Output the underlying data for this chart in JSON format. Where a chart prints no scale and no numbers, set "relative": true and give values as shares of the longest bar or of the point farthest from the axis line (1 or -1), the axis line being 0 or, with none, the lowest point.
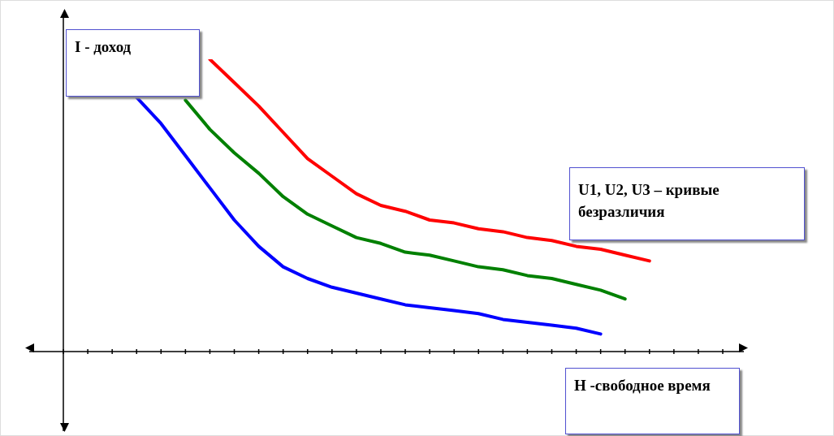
{
  "chart_data": {
    "type": "line",
    "relative": true,
    "legend": false,
    "marker": "none",
    "line_style": "solid",
    "xlabel": "H -свободное время",
    "ylabel": "I - доход",
    "annotations": [
      "U1, U2, U3 – кривые безразличия"
    ],
    "categories": [
      null,
      null,
      null,
      null,
      null,
      null,
      null,
      null,
      null,
      null,
      null,
      null,
      null,
      null,
      null,
      null,
      null,
      null,
      null,
      null,
      null,
      null,
      null,
      null,
      null,
      null,
      null,
      null
    ],
    "series": [
      {
        "color": "#ff0000",
        "values": [
          null,
          null,
          null,
          null,
          null,
          null,
          1,
          0.92,
          0.84,
          0.75,
          0.66,
          0.6,
          0.54,
          0.5,
          0.48,
          0.45,
          0.44,
          0.42,
          0.41,
          0.39,
          0.38,
          0.36,
          0.35,
          0.33,
          0.31,
          null,
          null,
          null
        ]
      },
      {
        "color": "#008000",
        "values": [
          null,
          null,
          null,
          null,
          null,
          0.86,
          0.76,
          0.68,
          0.61,
          0.53,
          0.47,
          0.43,
          0.39,
          0.37,
          0.34,
          0.33,
          0.31,
          0.29,
          0.28,
          0.26,
          0.25,
          0.23,
          0.21,
          0.18,
          null,
          null,
          null,
          null
        ]
      },
      {
        "color": "#0000ff",
        "values": [
          null,
          null,
          null,
          0.87,
          0.78,
          0.67,
          0.56,
          0.45,
          0.36,
          0.29,
          0.25,
          0.22,
          0.2,
          0.18,
          0.16,
          0.15,
          0.14,
          0.13,
          0.11,
          0.1,
          0.09,
          0.08,
          0.06,
          null,
          null,
          null,
          null,
          null
        ]
      }
    ]
  }
}
